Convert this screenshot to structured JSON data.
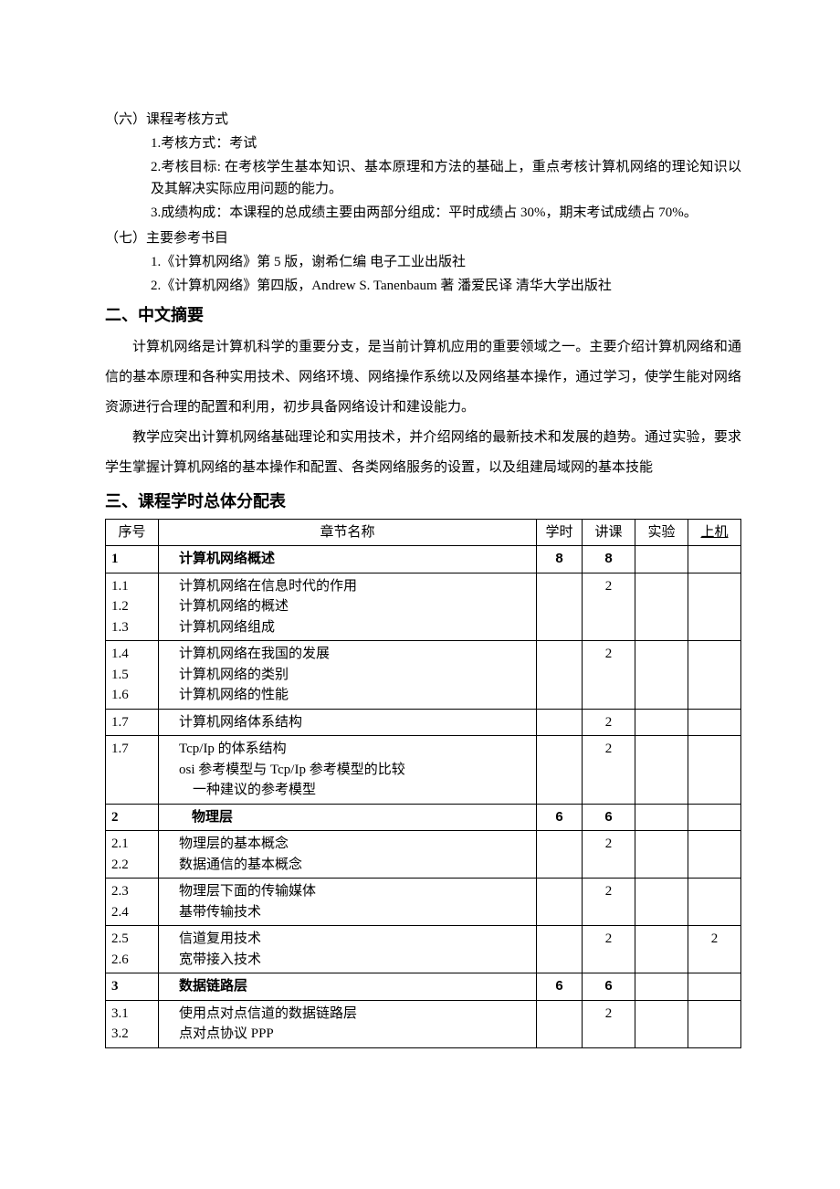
{
  "section6": {
    "heading": "（六）课程考核方式",
    "item1": "1.考核方式：考试",
    "item2": "2.考核目标: 在考核学生基本知识、基本原理和方法的基础上，重点考核计算机网络的理论知识以及其解决实际应用问题的能力。",
    "item3": "3.成绩构成：本课程的总成绩主要由两部分组成：平时成绩占 30%，期末考试成绩占 70%。"
  },
  "section7": {
    "heading": "（七）主要参考书目",
    "item1": "1.《计算机网络》第 5 版，谢希仁编  电子工业出版社",
    "item2": "2.《计算机网络》第四版，Andrew S. Tanenbaum 著  潘爱民译  清华大学出版社"
  },
  "abstract": {
    "heading": "二、中文摘要",
    "p1": "计算机网络是计算机科学的重要分支，是当前计算机应用的重要领域之一。主要介绍计算机网络和通信的基本原理和各种实用技术、网络环境、网络操作系统以及网络基本操作，通过学习，使学生能对网络资源进行合理的配置和利用，初步具备网络设计和建设能力。",
    "p2": "教学应突出计算机网络基础理论和实用技术，并介绍网络的最新技术和发展的趋势。通过实验，要求学生掌握计算机网络的基本操作和配置、各类网络服务的设置，以及组建局域网的基本技能"
  },
  "table": {
    "heading": "三、课程学时总体分配表",
    "headers": {
      "c1": "序号",
      "c2": "章节名称",
      "c3": "学时",
      "c4": "讲课",
      "c5": "实验",
      "c6": "上机"
    },
    "rows": [
      {
        "idx": "1",
        "name": "计算机网络概述",
        "bold": true,
        "h1": "8",
        "h2": "8",
        "h3": "",
        "h4": "",
        "indent": 1
      },
      {
        "idx": "1.1\n1.2\n1.3",
        "name": "计算机网络在信息时代的作用\n计算机网络的概述\n计算机网络组成",
        "h1": "",
        "h2": "2",
        "h3": "",
        "h4": "",
        "indent": 1
      },
      {
        "idx": "1.4\n1.5\n1.6",
        "name": "计算机网络在我国的发展\n计算机网络的类别\n计算机网络的性能",
        "h1": "",
        "h2": "2",
        "h3": "",
        "h4": "",
        "indent": 1
      },
      {
        "idx": "1.7",
        "name": "计算机网络体系结构",
        "h1": "",
        "h2": "2",
        "h3": "",
        "h4": "",
        "indent": 1
      },
      {
        "idx": "1.7",
        "name": "Tcp/Ip 的体系结构\nosi 参考模型与 Tcp/Ip 参考模型的比较\n    一种建议的参考模型",
        "h1": "",
        "h2": "2",
        "h3": "",
        "h4": "",
        "indent": 1
      },
      {
        "idx": "2",
        "name": "物理层",
        "bold": true,
        "h1": "6",
        "h2": "6",
        "h3": "",
        "h4": "",
        "indent": 2
      },
      {
        "idx": "2.1\n2.2",
        "name": "物理层的基本概念\n数据通信的基本概念",
        "h1": "",
        "h2": "2",
        "h3": "",
        "h4": "",
        "indent": 1
      },
      {
        "idx": "2.3\n2.4",
        "name": "物理层下面的传输媒体\n基带传输技术",
        "h1": "",
        "h2": "2",
        "h3": "",
        "h4": "",
        "indent": 1
      },
      {
        "idx": "2.5\n2.6",
        "name": "信道复用技术\n宽带接入技术",
        "h1": "",
        "h2": "2",
        "h3": "",
        "h4": "2",
        "indent": 1
      },
      {
        "idx": "3",
        "name": "数据链路层",
        "bold": true,
        "h1": "6",
        "h2": "6",
        "h3": "",
        "h4": "",
        "indent": 1
      },
      {
        "idx": "3.1\n3.2",
        "name": "使用点对点信道的数据链路层\n点对点协议 PPP",
        "h1": "",
        "h2": "2",
        "h3": "",
        "h4": "",
        "indent": 1
      }
    ]
  }
}
